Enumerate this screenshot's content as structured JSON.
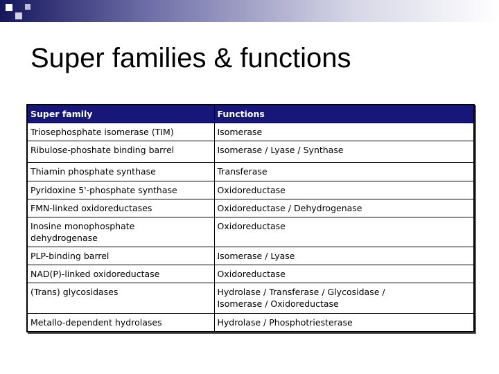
{
  "header": {
    "title": "Super families & functions"
  },
  "table": {
    "columns": [
      "Super family",
      "Functions"
    ],
    "rows": [
      [
        "Triosephosphate isomerase (TIM)",
        "Isomerase"
      ],
      [
        "Ribulose-phoshate binding barrel",
        "Isomerase / Lyase / Synthase"
      ],
      [
        "Thiamin phosphate synthase",
        "Transferase"
      ],
      [
        "Pyridoxine 5'-phosphate synthase",
        "Oxidoreductase"
      ],
      [
        "FMN-linked oxidoreductases",
        "Oxidoreductase / Dehydrogenase"
      ],
      [
        "Inosine monophosphate\ndehydrogenase",
        "Oxidoreductase"
      ],
      [
        "PLP-binding barrel",
        "Isomerase / Lyase"
      ],
      [
        "NAD(P)-linked oxidoreductase",
        "Oxidoreductase"
      ],
      [
        "(Trans) glycosidases",
        "Hydrolase / Transferase / Glycosidase /\nIsomerase / Oxidoreductase"
      ],
      [
        "Metallo-dependent hydrolases",
        "Hydrolase / Phosphotriesterase"
      ]
    ]
  }
}
